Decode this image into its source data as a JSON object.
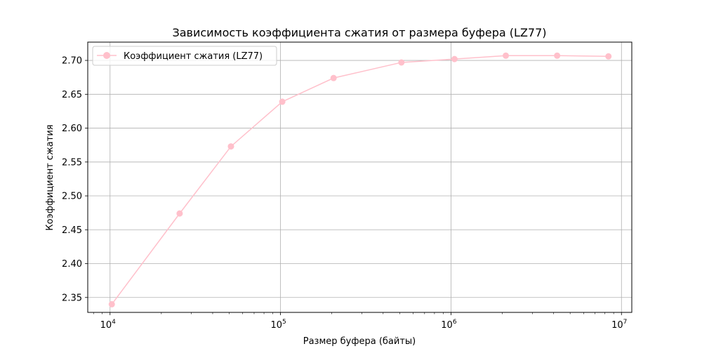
{
  "chart_data": {
    "type": "line",
    "title": "Зависимость коэффициента сжатия от размера буфера (LZ77)",
    "xlabel": "Размер буфера (байты)",
    "ylabel": "Коэффициент сжатия",
    "xscale": "log",
    "xlim": [
      7400,
      11500000
    ],
    "ylim": [
      2.328,
      2.727
    ],
    "grid": true,
    "legend_position": "top-left",
    "x_ticks": [
      {
        "value": 10000,
        "base": "10",
        "exp": "4"
      },
      {
        "value": 100000,
        "base": "10",
        "exp": "5"
      },
      {
        "value": 1000000,
        "base": "10",
        "exp": "6"
      },
      {
        "value": 10000000,
        "base": "10",
        "exp": "7"
      }
    ],
    "y_ticks": [
      2.35,
      2.4,
      2.45,
      2.5,
      2.55,
      2.6,
      2.65,
      2.7
    ],
    "series": [
      {
        "name": "Коэффициент сжатия (LZ77)",
        "color": "#ffc0cb",
        "marker": "circle",
        "x": [
          10240,
          25600,
          51200,
          102400,
          204800,
          512000,
          1048576,
          2097152,
          4194304,
          8388608
        ],
        "y": [
          2.34,
          2.474,
          2.573,
          2.639,
          2.674,
          2.697,
          2.702,
          2.707,
          2.707,
          2.706
        ]
      }
    ]
  }
}
